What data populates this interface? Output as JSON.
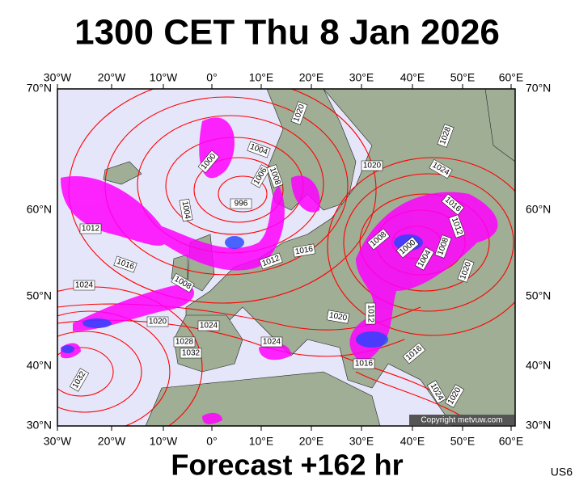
{
  "header": {
    "title": "1300 CET Thu 8 Jan 2026"
  },
  "map": {
    "lon_labels": [
      "30°W",
      "20°W",
      "10°W",
      "0°",
      "10°E",
      "20°E",
      "30°E",
      "40°E",
      "50°E",
      "60°E"
    ],
    "lat_labels": [
      "70°N",
      "60°N",
      "50°N",
      "40°N",
      "30°N"
    ],
    "isobar_labels": [
      "1000",
      "1004",
      "1006",
      "1008",
      "1020",
      "996",
      "1004",
      "1012",
      "1016",
      "1024",
      "1008",
      "1020",
      "1024",
      "1028",
      "1032",
      "1012",
      "1016",
      "1024",
      "1020",
      "1012",
      "1016",
      "1016",
      "1032",
      "1020",
      "1008",
      "1000",
      "1004",
      "1008",
      "1012",
      "1016",
      "1020",
      "1024",
      "1028",
      "1024",
      "1020"
    ],
    "copyright": "Copyright metvuw.com"
  },
  "footer": {
    "forecast": "Forecast +162 hr",
    "code": "US6"
  }
}
